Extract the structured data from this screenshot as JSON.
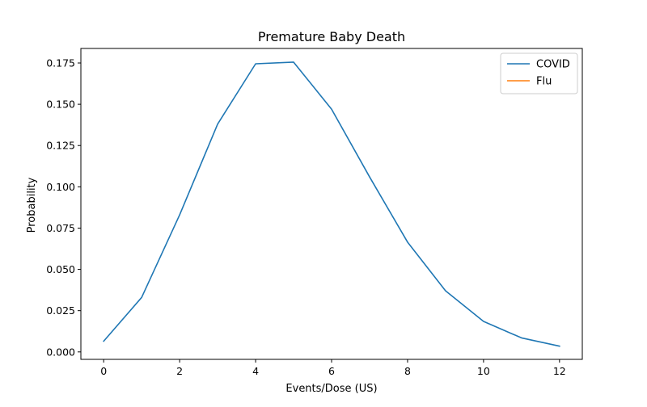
{
  "chart_data": {
    "type": "line",
    "title": "Premature Baby Death",
    "xlabel": "Events/Dose (US)",
    "ylabel": "Probability",
    "xlim": [
      -0.6,
      12.6
    ],
    "ylim": [
      -0.0045,
      0.1838
    ],
    "x_ticks": [
      0,
      2,
      4,
      6,
      8,
      10,
      12
    ],
    "x_tick_labels": [
      "0",
      "2",
      "4",
      "6",
      "8",
      "10",
      "12"
    ],
    "y_ticks": [
      0.0,
      0.025,
      0.05,
      0.075,
      0.1,
      0.125,
      0.15,
      0.175
    ],
    "y_tick_labels": [
      "0.000",
      "0.025",
      "0.050",
      "0.075",
      "0.100",
      "0.125",
      "0.150",
      "0.175"
    ],
    "grid": false,
    "legend_position": "top-right",
    "series": [
      {
        "name": "COVID",
        "color": "#1f77b4",
        "x": [
          0,
          1,
          2,
          3,
          4,
          5,
          6,
          7,
          8,
          9,
          10,
          11,
          12
        ],
        "y": [
          0.0065,
          0.033,
          0.083,
          0.138,
          0.1745,
          0.1755,
          0.147,
          0.106,
          0.0665,
          0.037,
          0.0185,
          0.0085,
          0.0035
        ]
      },
      {
        "name": "Flu",
        "color": "#ff7f0e",
        "x": [],
        "y": []
      }
    ]
  }
}
